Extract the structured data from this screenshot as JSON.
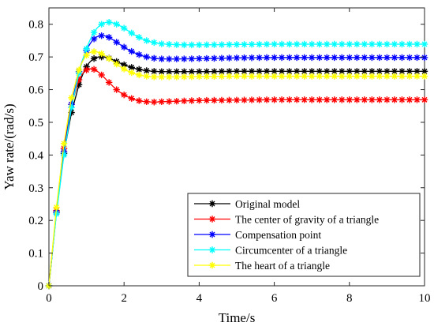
{
  "chart_data": {
    "type": "line",
    "title": "",
    "xlabel": "Time/s",
    "ylabel": "Yaw rate/(rad/s)",
    "xlim": [
      0,
      10
    ],
    "ylim": [
      0,
      0.85
    ],
    "xticks": [
      "0",
      "2",
      "4",
      "6",
      "8",
      "10"
    ],
    "yticks": [
      "0",
      "0.1",
      "0.2",
      "0.3",
      "0.4",
      "0.5",
      "0.6",
      "0.7",
      "0.8"
    ],
    "grid": false,
    "legend_position": "bottom-right",
    "marker": "asterisk",
    "series": [
      {
        "name": "Original model",
        "color": "#000000",
        "x": [
          0,
          0.2,
          0.4,
          0.6,
          0.8,
          1.0,
          1.2,
          1.4,
          1.6,
          1.8,
          2.0,
          2.2,
          2.4,
          2.6,
          2.8,
          3.0,
          3.5,
          4.0,
          5.0,
          6.0,
          7.0,
          8.0,
          9.0,
          10.0
        ],
        "y": [
          0,
          0.225,
          0.405,
          0.53,
          0.615,
          0.67,
          0.695,
          0.7,
          0.696,
          0.686,
          0.676,
          0.668,
          0.662,
          0.658,
          0.656,
          0.655,
          0.655,
          0.655,
          0.656,
          0.656,
          0.656,
          0.656,
          0.656,
          0.656
        ]
      },
      {
        "name": "The center of gravity of a triangle",
        "color": "#ff0000",
        "x": [
          0,
          0.2,
          0.4,
          0.6,
          0.8,
          1.0,
          1.2,
          1.4,
          1.6,
          1.8,
          2.0,
          2.2,
          2.4,
          2.6,
          2.8,
          3.0,
          3.5,
          4.0,
          5.0,
          6.0,
          7.0,
          8.0,
          9.0,
          10.0
        ],
        "y": [
          0,
          0.23,
          0.42,
          0.555,
          0.63,
          0.66,
          0.662,
          0.645,
          0.622,
          0.6,
          0.584,
          0.573,
          0.566,
          0.563,
          0.562,
          0.563,
          0.565,
          0.567,
          0.568,
          0.569,
          0.569,
          0.569,
          0.569,
          0.569
        ]
      },
      {
        "name": "Compensation point",
        "color": "#0000ff",
        "x": [
          0,
          0.2,
          0.4,
          0.6,
          0.8,
          1.0,
          1.2,
          1.4,
          1.6,
          1.8,
          2.0,
          2.2,
          2.4,
          2.6,
          2.8,
          3.0,
          3.5,
          4.0,
          5.0,
          6.0,
          7.0,
          8.0,
          9.0,
          10.0
        ],
        "y": [
          0,
          0.225,
          0.41,
          0.555,
          0.655,
          0.72,
          0.755,
          0.765,
          0.76,
          0.745,
          0.73,
          0.717,
          0.707,
          0.7,
          0.696,
          0.694,
          0.694,
          0.695,
          0.697,
          0.698,
          0.698,
          0.698,
          0.698,
          0.698
        ]
      },
      {
        "name": "Circumcenter of a triangle",
        "color": "#00ffff",
        "x": [
          0,
          0.2,
          0.4,
          0.6,
          0.8,
          1.0,
          1.2,
          1.4,
          1.6,
          1.8,
          2.0,
          2.2,
          2.4,
          2.6,
          2.8,
          3.0,
          3.5,
          4.0,
          5.0,
          6.0,
          7.0,
          8.0,
          9.0,
          10.0
        ],
        "y": [
          0,
          0.22,
          0.4,
          0.545,
          0.65,
          0.725,
          0.775,
          0.8,
          0.806,
          0.8,
          0.788,
          0.773,
          0.76,
          0.75,
          0.744,
          0.74,
          0.737,
          0.737,
          0.738,
          0.739,
          0.739,
          0.739,
          0.739,
          0.739
        ]
      },
      {
        "name": "The heart of a triangle",
        "color": "#ffff00",
        "x": [
          0,
          0.2,
          0.4,
          0.6,
          0.8,
          1.0,
          1.2,
          1.4,
          1.6,
          1.8,
          2.0,
          2.2,
          2.4,
          2.6,
          2.8,
          3.0,
          3.5,
          4.0,
          5.0,
          6.0,
          7.0,
          8.0,
          9.0,
          10.0
        ],
        "y": [
          0,
          0.24,
          0.435,
          0.575,
          0.66,
          0.705,
          0.716,
          0.71,
          0.695,
          0.678,
          0.663,
          0.652,
          0.645,
          0.641,
          0.639,
          0.639,
          0.639,
          0.64,
          0.641,
          0.641,
          0.641,
          0.641,
          0.641,
          0.641
        ]
      }
    ]
  }
}
